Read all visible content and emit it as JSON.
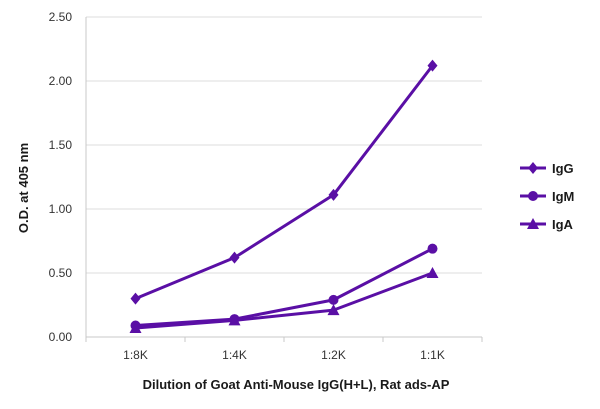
{
  "chart_data": {
    "type": "line",
    "categories": [
      "1:8K",
      "1:4K",
      "1:2K",
      "1:1K"
    ],
    "series": [
      {
        "name": "IgG",
        "marker": "diamond",
        "values": [
          0.3,
          0.62,
          1.11,
          2.12
        ]
      },
      {
        "name": "IgM",
        "marker": "circle",
        "values": [
          0.09,
          0.14,
          0.29,
          0.69
        ]
      },
      {
        "name": "IgA",
        "marker": "triangle",
        "values": [
          0.07,
          0.13,
          0.21,
          0.5
        ]
      }
    ],
    "title": "",
    "xlabel": "Dilution of Goat Anti-Mouse IgG(H+L), Rat ads-AP",
    "ylabel": "O.D. at 405 nm",
    "ylim": [
      0,
      2.5
    ],
    "yticks": [
      "0.00",
      "0.50",
      "1.00",
      "1.50",
      "2.00",
      "2.50"
    ],
    "grid": "horizontal",
    "legend": "right",
    "color": "#5a0fa5"
  }
}
